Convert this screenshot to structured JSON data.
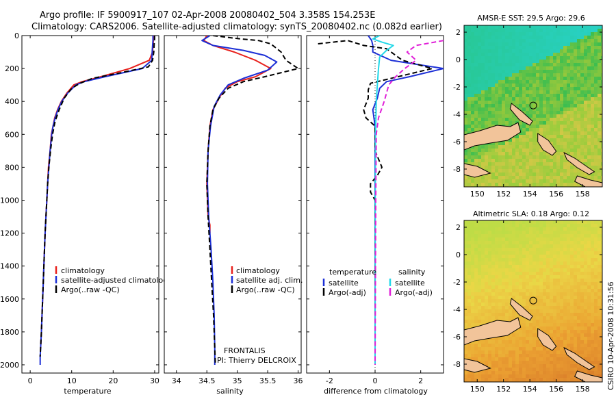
{
  "header": {
    "line1": "Argo profile: IF 5900917_107 02-Apr-2008 20080402_504 3.358S 154.253E",
    "line2": "Climatology: CARS2006. Satellite-adjusted climatology: synTS_20080402.nc (0.082d earlier)"
  },
  "colors": {
    "climatology": "#e8201c",
    "satellite": "#1c2fd6",
    "argo": "#000000",
    "salinity_satellite": "#22d8e8",
    "salinity_argo": "#e020d8"
  },
  "chart_data": [
    {
      "type": "line",
      "panel": "temperature",
      "xlabel": "temperature",
      "ylabel": "",
      "xlim": [
        -2,
        31
      ],
      "ylim": [
        2050,
        0
      ],
      "y_inverted": true,
      "xticks": [
        0,
        10,
        20,
        30
      ],
      "yticks": [
        0,
        200,
        400,
        600,
        800,
        1000,
        1200,
        1400,
        1600,
        1800,
        2000
      ],
      "legend": [
        "climatology",
        "satellite-adjusted climatolog",
        "Argo(..raw -QC)"
      ],
      "series": [
        {
          "name": "climatology",
          "style": "solid",
          "color_key": "climatology",
          "points": [
            [
              29.8,
              0
            ],
            [
              29.7,
              30
            ],
            [
              29.6,
              60
            ],
            [
              29.5,
              100
            ],
            [
              28.7,
              150
            ],
            [
              24,
              200
            ],
            [
              17,
              250
            ],
            [
              12.5,
              280
            ],
            [
              10.5,
              300
            ],
            [
              8.8,
              350
            ],
            [
              7.5,
              400
            ],
            [
              6.6,
              450
            ],
            [
              5.9,
              500
            ],
            [
              5.5,
              550
            ],
            [
              5.1,
              600
            ],
            [
              4.8,
              700
            ],
            [
              4.4,
              800
            ],
            [
              4.2,
              900
            ],
            [
              4,
              1000
            ],
            [
              3.6,
              1200
            ],
            [
              3.3,
              1400
            ],
            [
              3,
              1600
            ],
            [
              2.7,
              1800
            ],
            [
              2.5,
              1900
            ]
          ]
        },
        {
          "name": "satellite-adjusted climatolog",
          "style": "solid",
          "color_key": "satellite",
          "points": [
            [
              29.6,
              0
            ],
            [
              29.6,
              30
            ],
            [
              29.5,
              60
            ],
            [
              29.4,
              100
            ],
            [
              29.3,
              150
            ],
            [
              27,
              200
            ],
            [
              18,
              250
            ],
            [
              13,
              280
            ],
            [
              11,
              300
            ],
            [
              9,
              350
            ],
            [
              7.6,
              400
            ],
            [
              6.7,
              450
            ],
            [
              6,
              500
            ],
            [
              5.5,
              550
            ],
            [
              5.2,
              600
            ],
            [
              4.8,
              700
            ],
            [
              4.5,
              800
            ],
            [
              4.2,
              900
            ],
            [
              4,
              1000
            ],
            [
              3.6,
              1200
            ],
            [
              3.3,
              1400
            ],
            [
              3,
              1600
            ],
            [
              2.7,
              1800
            ],
            [
              2.4,
              1950
            ],
            [
              2.4,
              2000
            ]
          ]
        },
        {
          "name": "Argo(..raw -QC)",
          "style": "dashed",
          "color_key": "argo",
          "points": [
            [
              30,
              0
            ],
            [
              30,
              20
            ],
            [
              29.9,
              50
            ],
            [
              29.8,
              100
            ],
            [
              29.5,
              150
            ],
            [
              28.5,
              190
            ],
            [
              21,
              230
            ],
            [
              15,
              260
            ],
            [
              12,
              290
            ],
            [
              10,
              320
            ],
            [
              8.2,
              380
            ],
            [
              7,
              450
            ],
            [
              6,
              520
            ],
            [
              5.4,
              600
            ],
            [
              4.9,
              700
            ],
            [
              4.5,
              800
            ],
            [
              4.2,
              900
            ],
            [
              4,
              1000
            ],
            [
              3.6,
              1200
            ],
            [
              3.3,
              1400
            ],
            [
              3,
              1600
            ],
            [
              2.7,
              1800
            ],
            [
              2.4,
              1950
            ]
          ]
        }
      ]
    },
    {
      "type": "line",
      "panel": "salinity",
      "xlabel": "salinity",
      "ylabel": "",
      "xlim": [
        33.8,
        36.05
      ],
      "ylim": [
        2050,
        0
      ],
      "y_inverted": true,
      "xticks": [
        34,
        34.5,
        35,
        35.5,
        36
      ],
      "legend": [
        "climatology",
        "satellite adj. clim.",
        "Argo(..raw -QC)"
      ],
      "annotations": [
        "FRONTALIS",
        "PI: Thierry DELCROIX"
      ],
      "series": [
        {
          "name": "climatology",
          "style": "solid",
          "color_key": "climatology",
          "points": [
            [
              34.5,
              0
            ],
            [
              34.45,
              30
            ],
            [
              34.6,
              60
            ],
            [
              34.95,
              100
            ],
            [
              35.3,
              150
            ],
            [
              35.55,
              200
            ],
            [
              35.3,
              250
            ],
            [
              35.0,
              280
            ],
            [
              34.8,
              320
            ],
            [
              34.7,
              380
            ],
            [
              34.6,
              450
            ],
            [
              34.55,
              550
            ],
            [
              34.52,
              700
            ],
            [
              34.5,
              900
            ],
            [
              34.52,
              1100
            ],
            [
              34.55,
              1150
            ],
            [
              34.55,
              1200
            ]
          ]
        },
        {
          "name": "satellite adj. clim.",
          "style": "solid",
          "color_key": "satellite",
          "points": [
            [
              34.55,
              0
            ],
            [
              34.42,
              30
            ],
            [
              34.6,
              60
            ],
            [
              35.1,
              90
            ],
            [
              35.45,
              120
            ],
            [
              35.65,
              160
            ],
            [
              35.5,
              210
            ],
            [
              35.1,
              260
            ],
            [
              34.85,
              300
            ],
            [
              34.72,
              360
            ],
            [
              34.62,
              430
            ],
            [
              34.56,
              550
            ],
            [
              34.52,
              700
            ],
            [
              34.51,
              900
            ],
            [
              34.53,
              1100
            ],
            [
              34.57,
              1300
            ],
            [
              34.6,
              1500
            ],
            [
              34.62,
              1700
            ],
            [
              34.63,
              1900
            ],
            [
              34.63,
              2000
            ]
          ]
        },
        {
          "name": "Argo(..raw -QC)",
          "style": "dashed",
          "color_key": "argo",
          "points": [
            [
              34.6,
              0
            ],
            [
              35.05,
              20
            ],
            [
              35.35,
              30
            ],
            [
              35.55,
              50
            ],
            [
              35.72,
              100
            ],
            [
              35.8,
              150
            ],
            [
              36.0,
              200
            ],
            [
              35.45,
              250
            ],
            [
              35.1,
              280
            ],
            [
              34.85,
              320
            ],
            [
              34.7,
              380
            ],
            [
              34.6,
              450
            ],
            [
              34.55,
              550
            ],
            [
              34.52,
              700
            ],
            [
              34.5,
              900
            ],
            [
              34.52,
              1100
            ],
            [
              34.55,
              1300
            ],
            [
              34.58,
              1500
            ],
            [
              34.61,
              1700
            ],
            [
              34.63,
              1900
            ],
            [
              34.64,
              2000
            ]
          ]
        }
      ]
    },
    {
      "type": "line",
      "panel": "difference",
      "xlabel": "difference from climatology",
      "ylabel": "",
      "xlim": [
        -3,
        3
      ],
      "ylim": [
        2050,
        0
      ],
      "y_inverted": true,
      "xticks": [
        -2,
        0,
        2
      ],
      "legend_groups": [
        {
          "title": "temperature",
          "items": [
            "satellite",
            "Argo(-adj)"
          ]
        },
        {
          "title": "salinity",
          "items": [
            "satellite",
            "Argo(-adj)"
          ]
        }
      ],
      "series": [
        {
          "name": "temperature satellite",
          "style": "solid",
          "color_key": "satellite",
          "points": [
            [
              -0.3,
              0
            ],
            [
              -0.15,
              30
            ],
            [
              -0.1,
              60
            ],
            [
              -0.1,
              100
            ],
            [
              0.7,
              150
            ],
            [
              3,
              200
            ],
            [
              1.5,
              250
            ],
            [
              0.5,
              280
            ],
            [
              0.2,
              320
            ],
            [
              0.1,
              380
            ],
            [
              -0.1,
              450
            ],
            [
              0,
              550
            ],
            [
              0,
              700
            ],
            [
              0,
              1000
            ],
            [
              0,
              1500
            ],
            [
              0,
              2000
            ]
          ]
        },
        {
          "name": "temperature Argo(-adj)",
          "style": "dashed",
          "color_key": "argo",
          "points": [
            [
              -2.5,
              50
            ],
            [
              -1.2,
              30
            ],
            [
              -0.5,
              60
            ],
            [
              0.5,
              80
            ],
            [
              1.2,
              150
            ],
            [
              2.5,
              200
            ],
            [
              1,
              250
            ],
            [
              -0.2,
              290
            ],
            [
              -0.3,
              330
            ],
            [
              -0.3,
              380
            ],
            [
              -0.5,
              450
            ],
            [
              -0.4,
              500
            ],
            [
              0,
              550
            ],
            [
              0,
              700
            ],
            [
              0.3,
              800
            ],
            [
              0.1,
              850
            ],
            [
              -0.2,
              900
            ],
            [
              -0.2,
              950
            ],
            [
              0,
              1000
            ],
            [
              0,
              1500
            ],
            [
              0,
              2000
            ]
          ]
        },
        {
          "name": "salinity satellite",
          "style": "solid",
          "color_key": "salinity_satellite",
          "points": [
            [
              0.2,
              0
            ],
            [
              -0.1,
              20
            ],
            [
              0.3,
              40
            ],
            [
              0.8,
              60
            ],
            [
              0.5,
              90
            ],
            [
              0.2,
              130
            ],
            [
              0.15,
              200
            ],
            [
              0.1,
              300
            ],
            [
              0.05,
              400
            ],
            [
              0.02,
              600
            ],
            [
              0.01,
              1000
            ],
            [
              0,
              2000
            ]
          ]
        },
        {
          "name": "salinity Argo(-adj)",
          "style": "dashed",
          "color_key": "salinity_argo",
          "points": [
            [
              3,
              30
            ],
            [
              1.8,
              60
            ],
            [
              1.4,
              100
            ],
            [
              1.8,
              150
            ],
            [
              1.3,
              200
            ],
            [
              0.9,
              250
            ],
            [
              0.6,
              300
            ],
            [
              0.4,
              400
            ],
            [
              0.15,
              500
            ],
            [
              0.05,
              600
            ],
            [
              0.03,
              1000
            ],
            [
              0,
              2000
            ]
          ]
        }
      ]
    },
    {
      "type": "heatmap",
      "panel": "sst_map",
      "title": "AMSR-E SST: 29.5 Argo: 29.6",
      "xlim": [
        149,
        159.5
      ],
      "ylim": [
        -9.3,
        2.5
      ],
      "xticks": [
        150,
        152,
        154,
        156,
        158
      ],
      "yticks": [
        -8,
        -6,
        -4,
        -2,
        0,
        2
      ],
      "argo_location": [
        154.253,
        -3.358
      ]
    },
    {
      "type": "heatmap",
      "panel": "sla_map",
      "title": "Altimetric SLA: 0.18 Argo: 0.12",
      "xlim": [
        149,
        159.5
      ],
      "ylim": [
        -9.3,
        2.5
      ],
      "xticks": [
        150,
        152,
        154,
        156,
        158
      ],
      "yticks": [
        -8,
        -6,
        -4,
        -2,
        0,
        2
      ],
      "argo_location": [
        154.253,
        -3.358
      ]
    }
  ],
  "footer": {
    "stamp": "CSIRO 10-Apr-2008 10:31:56"
  }
}
